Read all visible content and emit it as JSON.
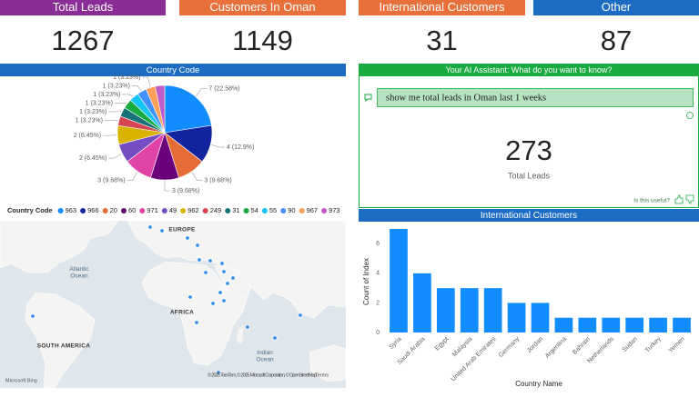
{
  "cards": [
    {
      "title": "Total Leads",
      "value": 1267,
      "color": "#8a2d96"
    },
    {
      "title": "Customers In Oman",
      "value": 1149,
      "color": "#e8703a"
    },
    {
      "title": "International Customers",
      "value": 31,
      "color": "#e8703a"
    },
    {
      "title": "Other",
      "value": 87,
      "color": "#1c6cc4"
    }
  ],
  "chart_data": [
    {
      "type": "pie",
      "title": "Country Code",
      "legend_title": "Country Code",
      "categories": [
        "963",
        "966",
        "20",
        "60",
        "971",
        "49",
        "962",
        "249",
        "31",
        "54",
        "55",
        "90",
        "967",
        "973"
      ],
      "values": [
        7,
        4,
        3,
        3,
        3,
        2,
        2,
        1,
        1,
        1,
        1,
        1,
        1,
        1
      ],
      "value_labels": [
        "7 (22.58%)",
        "4 (12.9%)",
        "3 (9.68%)",
        "3 (9.68%)",
        "3 (9.68%)",
        "2 (6.45%)",
        "2 (6.45%)",
        "1 (3.23%)",
        "1 (3.23%)",
        "1 (3.23%)",
        "1 (3.23%)",
        "1 (3.23%)",
        "1 (3.23%)",
        null
      ],
      "colors": [
        "#118dff",
        "#12239e",
        "#e66c37",
        "#6b007b",
        "#e044a7",
        "#744ec2",
        "#d9b300",
        "#d64550",
        "#197278",
        "#1aab40",
        "#15c6f4",
        "#4092ff",
        "#ffa058",
        "#be5dc9"
      ],
      "legend": "top-left"
    },
    {
      "type": "bar",
      "title": "International Customers",
      "x_label": "Country Name",
      "y_label": "Count of Index",
      "categories": [
        "Syria",
        "Saudi Arabia",
        "Egypt",
        "Malaysia",
        "United Arab Emirates",
        "Germany",
        "Jordan",
        "Argentina",
        "Bahrain",
        "Netherlands",
        "Sudan",
        "Turkey",
        "Yemen"
      ],
      "values": [
        7,
        4,
        3,
        3,
        3,
        2,
        2,
        1,
        1,
        1,
        1,
        1,
        1
      ],
      "color": "#118dff",
      "ylim": [
        0,
        7
      ],
      "yticks": [
        0,
        2,
        4,
        6
      ],
      "grid": false
    }
  ],
  "ai_assistant": {
    "title": "Your AI Assistant: What do you want to know?",
    "query": "show me total leads in Oman last 1 weeks",
    "result_value": 273,
    "result_label": "Total Leads",
    "feedback": "Is this useful?"
  },
  "map": {
    "labels": [
      "EUROPE",
      "AFRICA",
      "SOUTH AMERICA",
      "Atlantic Ocean",
      "Indian Ocean"
    ],
    "attribution": "© 2025 TomTom, © 2025 Microsoft Corporation, © OpenStreetMap",
    "terms": "Terms",
    "provider": "Microsoft Bing"
  }
}
